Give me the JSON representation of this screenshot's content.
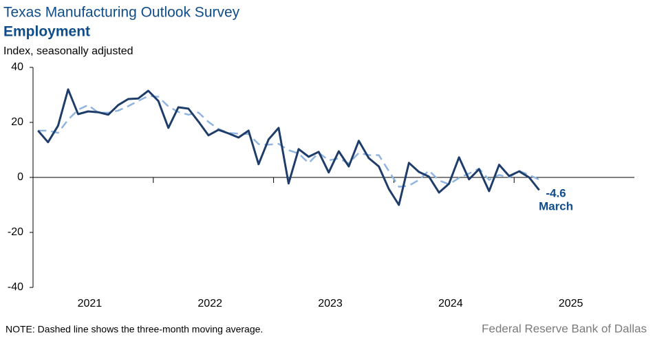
{
  "chart_data": {
    "type": "line",
    "title": "Texas Manufacturing Outlook Survey",
    "subtitle": "Employment",
    "y_label": "Index, seasonally adjusted",
    "note": "NOTE: Dashed line shows the three-month  moving average.",
    "source": "Federal Reserve Bank of Dallas",
    "annotations": [
      {
        "text": "-4.6"
      },
      {
        "text": "March"
      }
    ],
    "x": [
      2021.042,
      2021.125,
      2021.208,
      2021.292,
      2021.375,
      2021.458,
      2021.542,
      2021.625,
      2021.708,
      2021.792,
      2021.875,
      2021.958,
      2022.042,
      2022.125,
      2022.208,
      2022.292,
      2022.375,
      2022.458,
      2022.542,
      2022.625,
      2022.708,
      2022.792,
      2022.875,
      2022.958,
      2023.042,
      2023.125,
      2023.208,
      2023.292,
      2023.375,
      2023.458,
      2023.542,
      2023.625,
      2023.708,
      2023.792,
      2023.875,
      2023.958,
      2024.042,
      2024.125,
      2024.208,
      2024.292,
      2024.375,
      2024.458,
      2024.542,
      2024.625,
      2024.708,
      2024.792,
      2024.875,
      2024.958,
      2025.042,
      2025.125,
      2025.208
    ],
    "series": [
      {
        "color": "#1f3d6b",
        "dashed": false,
        "values": [
          17,
          12.8,
          18.8,
          32,
          23,
          24,
          23.7,
          22.8,
          26.3,
          28.5,
          28.7,
          31.5,
          27.8,
          18,
          25.5,
          25,
          20.3,
          15.3,
          17.3,
          16,
          14.5,
          17,
          4.8,
          13.8,
          18,
          -2.2,
          10.3,
          7.5,
          9.3,
          1.8,
          9.5,
          4,
          13.3,
          7,
          4,
          -4.2,
          -10,
          5.3,
          2,
          0.3,
          -5.5,
          -2.3,
          7.3,
          -0.7,
          3,
          -5,
          4.6,
          0.5,
          2.2,
          0,
          -4.6
        ]
      },
      {
        "color": "#8fb4e0",
        "dashed": true,
        "values": [
          17,
          17,
          16.2,
          21,
          24.6,
          26.3,
          23.6,
          23.5,
          24.3,
          25.9,
          27.8,
          29.6,
          29.3,
          25.8,
          23.8,
          22.8,
          23.6,
          20.2,
          17.6,
          16.2,
          15.9,
          15.8,
          12.1,
          11.9,
          12.2,
          9.9,
          8.7,
          5.2,
          9,
          6.2,
          6.9,
          5.1,
          8.9,
          8.1,
          8.1,
          2.3,
          -3.4,
          -3,
          -0.9,
          2.5,
          -1.1,
          -2.5,
          -0.2,
          1.4,
          3.2,
          -0.9,
          0.9,
          0,
          2.4,
          0.9,
          -0.8
        ]
      }
    ],
    "xlim": [
      2021,
      2026
    ],
    "xticks": [
      {
        "value": 2021,
        "label": "2021"
      },
      {
        "value": 2022,
        "label": "2022"
      },
      {
        "value": 2023,
        "label": "2023"
      },
      {
        "value": 2024,
        "label": "2024"
      },
      {
        "value": 2025,
        "label": "2025"
      }
    ],
    "ylim": [
      -40,
      40
    ],
    "yticks": [
      -40,
      -20,
      0,
      20,
      40
    ],
    "grid": false
  }
}
